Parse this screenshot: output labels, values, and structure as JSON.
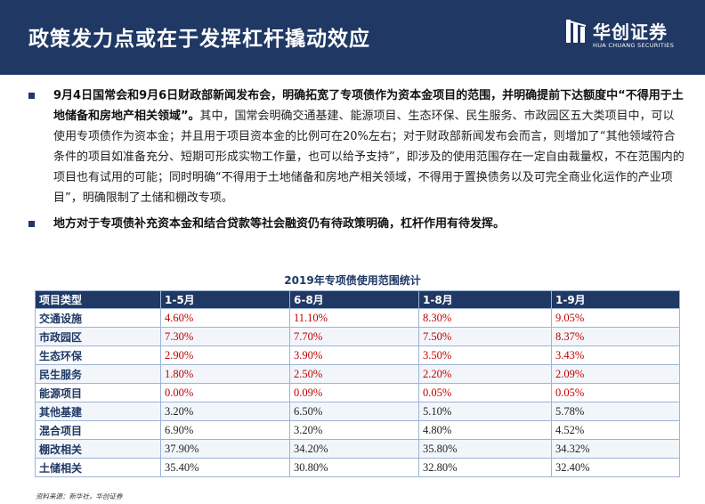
{
  "header": {
    "title": "政策发力点或在于发挥杠杆撬动效应",
    "logo_cn": "华创证券",
    "logo_en": "HUA CHUANG SECURITIES"
  },
  "bullets": [
    {
      "bold": "9月4日国常会和9月6日财政部新闻发布会，明确拓宽了专项债作为资本金项目的范围，并明确提前下达额度中“不得用于土地储备和房地产相关领域”。",
      "text": "其中，国常会明确交通基建、能源项目、生态环保、民生服务、市政园区五大类项目中，可以使用专项债作为资本金；并且用于项目资本金的比例可在20%左右；对于财政部新闻发布会而言，则增加了“其他领域符合条件的项目如准备充分、短期可形成实物工作量，也可以给予支持”，即涉及的使用范围存在一定自由裁量权，不在范围内的项目也有试用的可能；同时明确“不得用于土地储备和房地产相关领域，不得用于置换债务以及可完全商业化运作的产业项目”，明确限制了土储和棚改专项。"
    },
    {
      "bold": "地方对于专项债补充资本金和结合贷款等社会融资仍有待政策明确，杠杆作用有待发挥。",
      "text": ""
    }
  ],
  "table": {
    "title": "2019年专项债使用范围统计",
    "headers": [
      "项目类型",
      "1-5月",
      "6-8月",
      "1-8月",
      "1-9月"
    ],
    "rows": [
      {
        "cells": [
          "交通设施",
          "4.60%",
          "11.10%",
          "8.30%",
          "9.05%"
        ],
        "style": "red"
      },
      {
        "cells": [
          "市政园区",
          "7.30%",
          "7.70%",
          "7.50%",
          "8.37%"
        ],
        "style": "red"
      },
      {
        "cells": [
          "生态环保",
          "2.90%",
          "3.90%",
          "3.50%",
          "3.43%"
        ],
        "style": "red"
      },
      {
        "cells": [
          "民生服务",
          "1.80%",
          "2.50%",
          "2.20%",
          "2.09%"
        ],
        "style": "red"
      },
      {
        "cells": [
          "能源项目",
          "0.00%",
          "0.09%",
          "0.05%",
          "0.05%"
        ],
        "style": "red"
      },
      {
        "cells": [
          "其他基建",
          "3.20%",
          "6.50%",
          "5.10%",
          "5.78%"
        ],
        "style": "black"
      },
      {
        "cells": [
          "混合项目",
          "6.90%",
          "3.20%",
          "4.80%",
          "4.52%"
        ],
        "style": "black"
      },
      {
        "cells": [
          "棚改相关",
          "37.90%",
          "34.20%",
          "35.80%",
          "34.32%"
        ],
        "style": "black"
      },
      {
        "cells": [
          "土储相关",
          "35.40%",
          "30.80%",
          "32.80%",
          "32.40%"
        ],
        "style": "black"
      }
    ]
  },
  "source": "资料来源：新华社，华创证券",
  "colors": {
    "navy": "#1f3864",
    "red": "#c00000",
    "border": "#9db4d6"
  }
}
